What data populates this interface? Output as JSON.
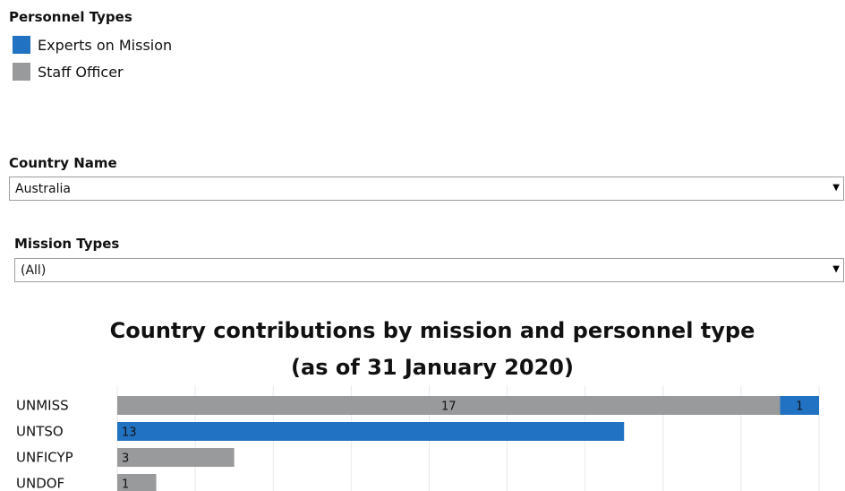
{
  "legend": {
    "title": "Personnel Types",
    "items": [
      {
        "label": "Experts on Mission",
        "color": "#2272c3"
      },
      {
        "label": "Staff Officer",
        "color": "#999a9c"
      }
    ]
  },
  "filters": {
    "country": {
      "label": "Country Name",
      "value": "Australia"
    },
    "mission": {
      "label": "Mission Types",
      "value": "(All)"
    }
  },
  "chart_data": {
    "type": "bar",
    "orientation": "horizontal",
    "stacked": true,
    "title": "Country contributions by mission and personnel type",
    "subtitle": "(as of 31 January 2020)",
    "categories": [
      "UNMISS",
      "UNTSO",
      "UNFICYP",
      "UNDOF"
    ],
    "series": [
      {
        "name": "Staff Officer",
        "color": "#999a9c",
        "values": [
          17,
          0,
          3,
          1
        ]
      },
      {
        "name": "Experts on Mission",
        "color": "#2272c3",
        "values": [
          1,
          13,
          0,
          0
        ]
      }
    ],
    "xlim": [
      0,
      18
    ],
    "grid": true
  }
}
